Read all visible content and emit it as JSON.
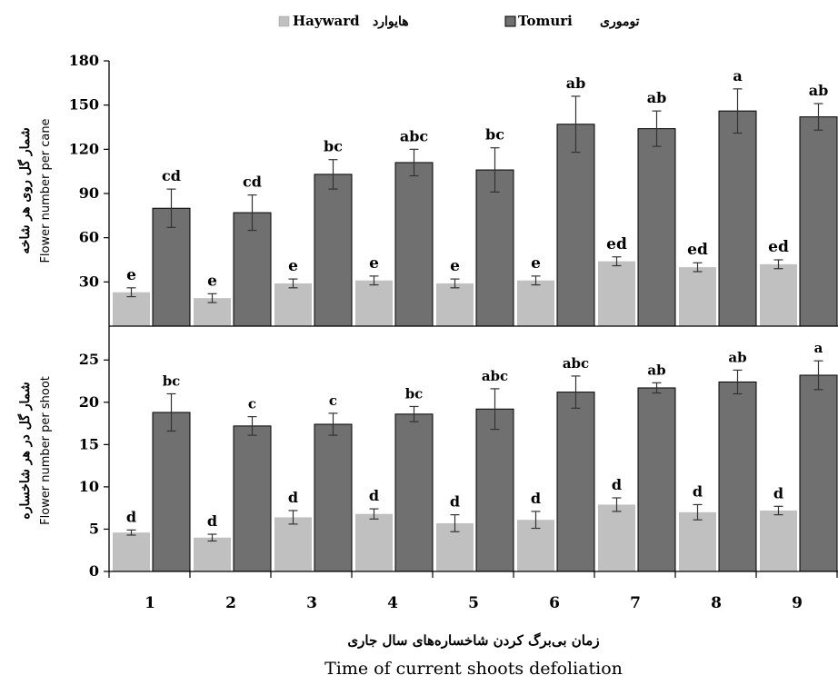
{
  "legend": {
    "position": "top-center",
    "items": [
      {
        "label_fa": "هایوارد",
        "label_en": "Hayward",
        "color": "#c0c0c0"
      },
      {
        "label_fa": "توموری",
        "label_en": "Tomuri",
        "color": "#707070"
      }
    ]
  },
  "x_axis": {
    "label_fa": "زمان بی‌برگ کردن شاخساره‌های سال جاری",
    "label_en": "Time of current shoots defoliation"
  },
  "chart_data": [
    {
      "type": "bar",
      "ylabel_fa": "شمار گل روی هر شاخه",
      "ylabel_en": "Flower number per cane",
      "ylim": [
        0,
        180
      ],
      "yticks": [
        30,
        60,
        90,
        120,
        150,
        180
      ],
      "grid": false,
      "categories": [
        "1",
        "2",
        "3",
        "4",
        "5",
        "6",
        "7",
        "8",
        "9"
      ],
      "series": [
        {
          "name": "Hayward",
          "color": "#c0c0c0",
          "values": [
            23,
            19,
            29,
            31,
            29,
            31,
            44,
            40,
            42
          ],
          "errors": [
            3,
            3,
            3,
            3,
            3,
            3,
            3,
            3,
            3
          ],
          "labels": [
            "e",
            "e",
            "e",
            "e",
            "e",
            "e",
            "ed",
            "ed",
            "ed"
          ]
        },
        {
          "name": "Tomuri",
          "color": "#707070",
          "values": [
            80,
            77,
            103,
            111,
            106,
            137,
            134,
            146,
            142
          ],
          "errors": [
            13,
            12,
            10,
            9,
            15,
            19,
            12,
            15,
            9
          ],
          "labels": [
            "cd",
            "cd",
            "bc",
            "abc",
            "bc",
            "ab",
            "ab",
            "a",
            "ab"
          ]
        }
      ]
    },
    {
      "type": "bar",
      "ylabel_fa": "شمار گل در هر شاخساره",
      "ylabel_en": "Flower number per shoot",
      "ylim": [
        0,
        29
      ],
      "yticks": [
        0,
        5,
        10,
        15,
        20,
        25
      ],
      "grid": false,
      "categories": [
        "1",
        "2",
        "3",
        "4",
        "5",
        "6",
        "7",
        "8",
        "9"
      ],
      "series": [
        {
          "name": "Hayward",
          "color": "#c0c0c0",
          "values": [
            4.6,
            4.0,
            6.4,
            6.8,
            5.7,
            6.1,
            7.9,
            7.0,
            7.2
          ],
          "errors": [
            0.3,
            0.4,
            0.8,
            0.6,
            1.0,
            1.0,
            0.8,
            0.9,
            0.5
          ],
          "labels": [
            "d",
            "d",
            "d",
            "d",
            "d",
            "d",
            "d",
            "d",
            "d"
          ]
        },
        {
          "name": "Tomuri",
          "color": "#707070",
          "values": [
            18.8,
            17.2,
            17.4,
            18.6,
            19.2,
            21.2,
            21.7,
            22.4,
            23.2
          ],
          "errors": [
            2.2,
            1.1,
            1.3,
            0.9,
            2.4,
            1.9,
            0.6,
            1.4,
            1.7
          ],
          "labels": [
            "bc",
            "c",
            "c",
            "bc",
            "abc",
            "abc",
            "ab",
            "ab",
            "a"
          ]
        }
      ]
    }
  ]
}
